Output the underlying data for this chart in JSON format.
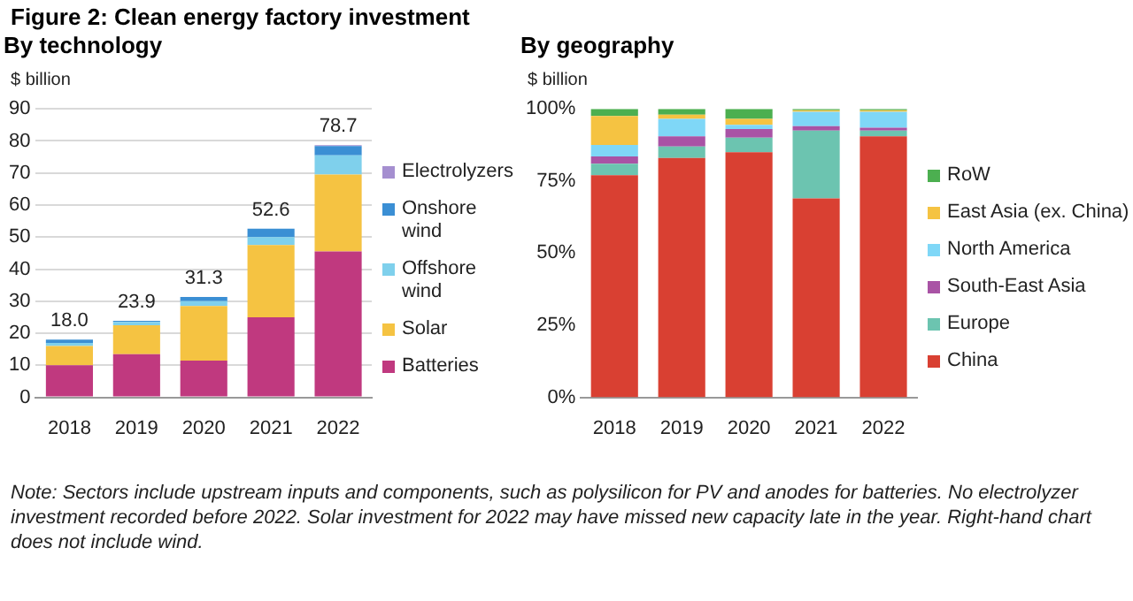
{
  "chart_data": [
    {
      "type": "bar",
      "title": "Figure 2: Clean energy factory investment",
      "subtitle": "By technology",
      "ylabel": "$ billion",
      "categories": [
        "2018",
        "2019",
        "2020",
        "2021",
        "2022"
      ],
      "stacked": true,
      "legend": "right",
      "grid": "y",
      "ylim": [
        0,
        90
      ],
      "yticks": [
        0,
        10,
        20,
        30,
        40,
        50,
        60,
        70,
        80,
        90
      ],
      "totals": [
        "18.0",
        "23.9",
        "31.3",
        "52.6",
        "78.7"
      ],
      "series": [
        {
          "name": "Batteries",
          "color": "#c0397f",
          "values": [
            10,
            13.5,
            11.5,
            25,
            45.5
          ]
        },
        {
          "name": "Solar",
          "color": "#f5c342",
          "values": [
            6,
            9,
            17,
            22.5,
            24
          ]
        },
        {
          "name": "Offshore wind",
          "color": "#7fd0ec",
          "values": [
            1,
            1,
            1.5,
            2.5,
            6
          ]
        },
        {
          "name": "Onshore wind",
          "color": "#3b8fd4",
          "values": [
            1,
            0.4,
            1.3,
            2.6,
            2.9
          ]
        },
        {
          "name": "Electrolyzers",
          "color": "#a58fd0",
          "values": [
            null,
            null,
            null,
            null,
            0.3
          ]
        }
      ],
      "annotations": [
        "Note: Sectors include upstream inputs and components, such as polysilicon for PV and anodes for batteries. No electrolyzer investment recorded before 2022. Solar investment for 2022 may have missed new capacity late in the year. Right-hand chart does not include wind."
      ]
    },
    {
      "type": "bar",
      "title": "By geography",
      "ylabel": "$ billion",
      "categories": [
        "2018",
        "2019",
        "2020",
        "2021",
        "2022"
      ],
      "stacked": true,
      "legend": "right",
      "grid": false,
      "ylim": [
        0,
        100
      ],
      "yticks": [
        {
          "value": 0,
          "label": "0%"
        },
        {
          "value": 25,
          "label": "25%"
        },
        {
          "value": 50,
          "label": "50%"
        },
        {
          "value": 75,
          "label": "75%"
        },
        {
          "value": 100,
          "label": "100%"
        }
      ],
      "series": [
        {
          "name": "China",
          "color": "#d94032",
          "values": [
            77,
            83,
            85,
            69,
            90.5
          ]
        },
        {
          "name": "Europe",
          "color": "#6cc4b0",
          "values": [
            4,
            4,
            5,
            23.5,
            2
          ]
        },
        {
          "name": "South-East Asia",
          "color": "#a953a5",
          "values": [
            2.5,
            3.5,
            3,
            1.5,
            1
          ]
        },
        {
          "name": "North America",
          "color": "#7fd7f7",
          "values": [
            4,
            6,
            1.5,
            5,
            5.5
          ]
        },
        {
          "name": "East Asia (ex. China)",
          "color": "#f5c342",
          "values": [
            10,
            1.5,
            2,
            0.5,
            0.5
          ]
        },
        {
          "name": "RoW",
          "color": "#4caf50",
          "values": [
            2.5,
            2,
            3.5,
            0.5,
            0.5
          ]
        }
      ]
    }
  ]
}
